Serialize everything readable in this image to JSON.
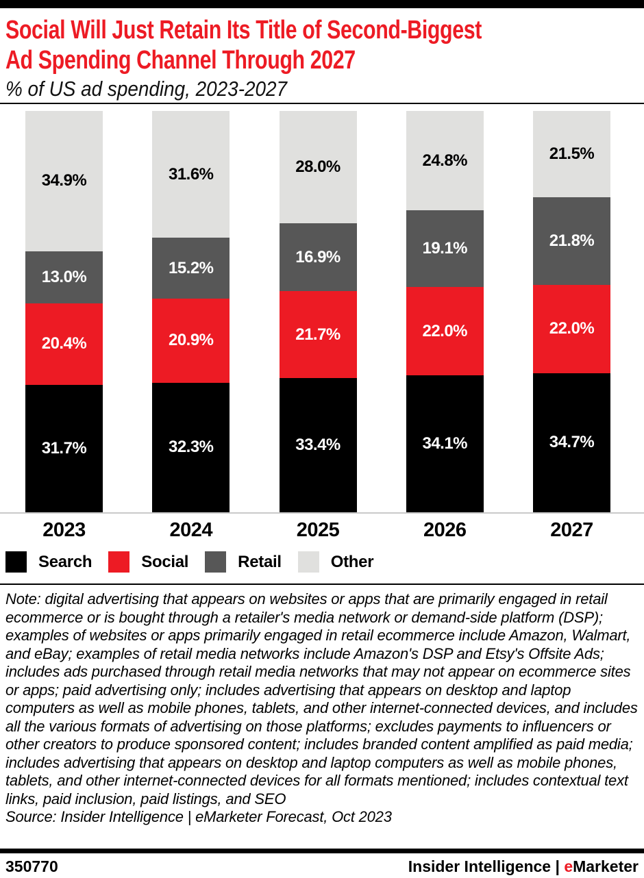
{
  "colors": {
    "accent_red": "#ed1b24",
    "search_black": "#000000",
    "social_red": "#ed1b24",
    "retail_gray": "#575757",
    "other_light_gray": "#e0e0de",
    "baseline_gray": "#c9c9c9"
  },
  "header": {
    "title": {
      "line1": "Social Will Just Retain Its Title of Second-Biggest",
      "line2": "Ad Spending Channel Through 2027"
    },
    "subtitle": "% of US ad spending, 2023-2027"
  },
  "chart_data": {
    "type": "bar",
    "stacked": true,
    "title": "Social Will Just Retain Its Title of Second-Biggest Ad Spending Channel Through 2027",
    "subtitle": "% of US ad spending, 2023-2027",
    "categories": [
      "2023",
      "2024",
      "2025",
      "2026",
      "2027"
    ],
    "series": [
      {
        "name": "Search",
        "color": "#000000",
        "label_color": "#ffffff",
        "values": [
          31.7,
          32.3,
          33.4,
          34.1,
          34.7
        ]
      },
      {
        "name": "Social",
        "color": "#ed1b24",
        "label_color": "#ffffff",
        "values": [
          20.4,
          20.9,
          21.7,
          22.0,
          22.0
        ]
      },
      {
        "name": "Retail",
        "color": "#575757",
        "label_color": "#ffffff",
        "values": [
          13.0,
          15.2,
          16.9,
          19.1,
          21.8
        ]
      },
      {
        "name": "Other",
        "color": "#e0e0de",
        "label_color": "#000000",
        "values": [
          34.9,
          31.6,
          28.0,
          24.8,
          21.5
        ]
      }
    ],
    "value_suffix": "%",
    "value_decimals": 1,
    "ylim": [
      0,
      100
    ],
    "grid": false,
    "legend_position": "bottom"
  },
  "note": {
    "text": "Note: digital advertising that appears on websites or apps that are primarily engaged in retail ecommerce or is bought through a retailer's media network or demand-side platform (DSP); examples of websites or apps primarily engaged in retail ecommerce include Amazon, Walmart, and eBay; examples of retail media networks include Amazon's DSP and Etsy's Offsite Ads; includes ads purchased through retail media networks that may not appear on ecommerce sites or apps; paid advertising only; includes advertising that appears on desktop and laptop computers as well as mobile phones, tablets, and other internet-connected devices, and includes all the various formats of advertising on those platforms; excludes payments to influencers or other creators to produce sponsored content; includes branded content amplified as paid media; includes advertising that appears on desktop and laptop computers as well as mobile phones, tablets, and other internet-connected devices for all formats mentioned; includes contextual text links, paid inclusion, paid listings, and SEO",
    "source": "Source: Insider Intelligence | eMarketer Forecast, Oct 2023"
  },
  "footer": {
    "id": "350770",
    "brand": {
      "prefix": "Insider Intelligence | ",
      "e": "e",
      "rest": "Marketer"
    }
  }
}
